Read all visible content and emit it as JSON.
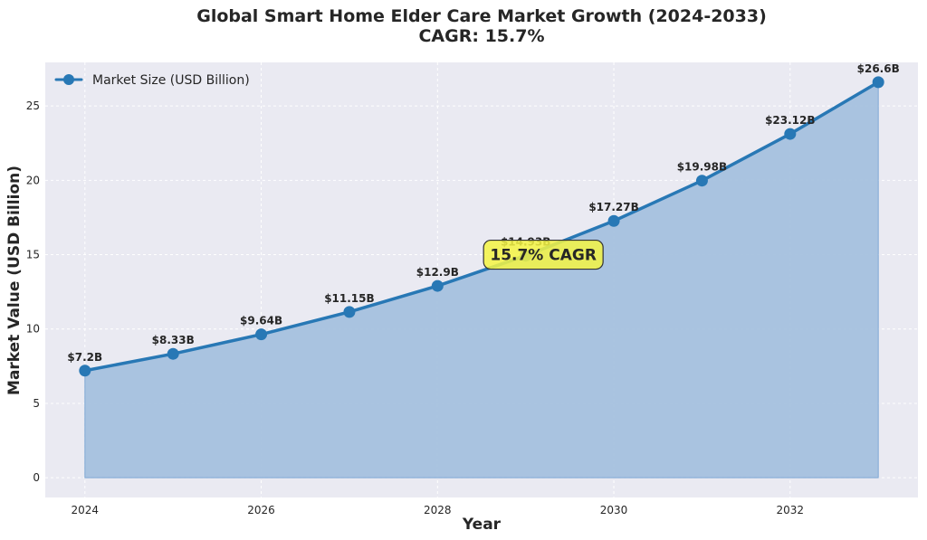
{
  "chart_data": {
    "type": "area",
    "title_line1": "Global Smart Home Elder Care Market Growth (2024-2033)",
    "title_line2": "CAGR: 15.7%",
    "xlabel": "Year",
    "ylabel": "Market Value (USD Billion)",
    "x": [
      2024,
      2025,
      2026,
      2027,
      2028,
      2029,
      2030,
      2031,
      2032,
      2033
    ],
    "series": [
      {
        "name": "Market Size (USD Billion)",
        "values": [
          7.2,
          8.33,
          9.64,
          11.15,
          12.9,
          14.93,
          17.27,
          19.98,
          23.12,
          26.6
        ],
        "labels": [
          "$7.2B",
          "$8.33B",
          "$9.64B",
          "$11.15B",
          "$12.9B",
          "$14.93B",
          "$17.27B",
          "$19.98B",
          "$23.12B",
          "$26.6B"
        ],
        "color": "#2878b5",
        "fill_color": "#a5c1de"
      }
    ],
    "xticks": [
      2024,
      2026,
      2028,
      2030,
      2032
    ],
    "xtick_labels": [
      "2024",
      "2026",
      "2028",
      "2030",
      "2032"
    ],
    "yticks": [
      0,
      5,
      10,
      15,
      20,
      25
    ],
    "ytick_labels": [
      "0",
      "5",
      "10",
      "15",
      "20",
      "25"
    ],
    "xlim": [
      2023.55,
      2033.45
    ],
    "ylim": [
      -1.33,
      27.93
    ],
    "grid": true,
    "legend_position": "top-left",
    "annotation": {
      "text": "15.7% CAGR",
      "x": 2029.2,
      "y": 15.0,
      "box_color": "#f5f543"
    },
    "background_color": "#eaeaf2"
  }
}
